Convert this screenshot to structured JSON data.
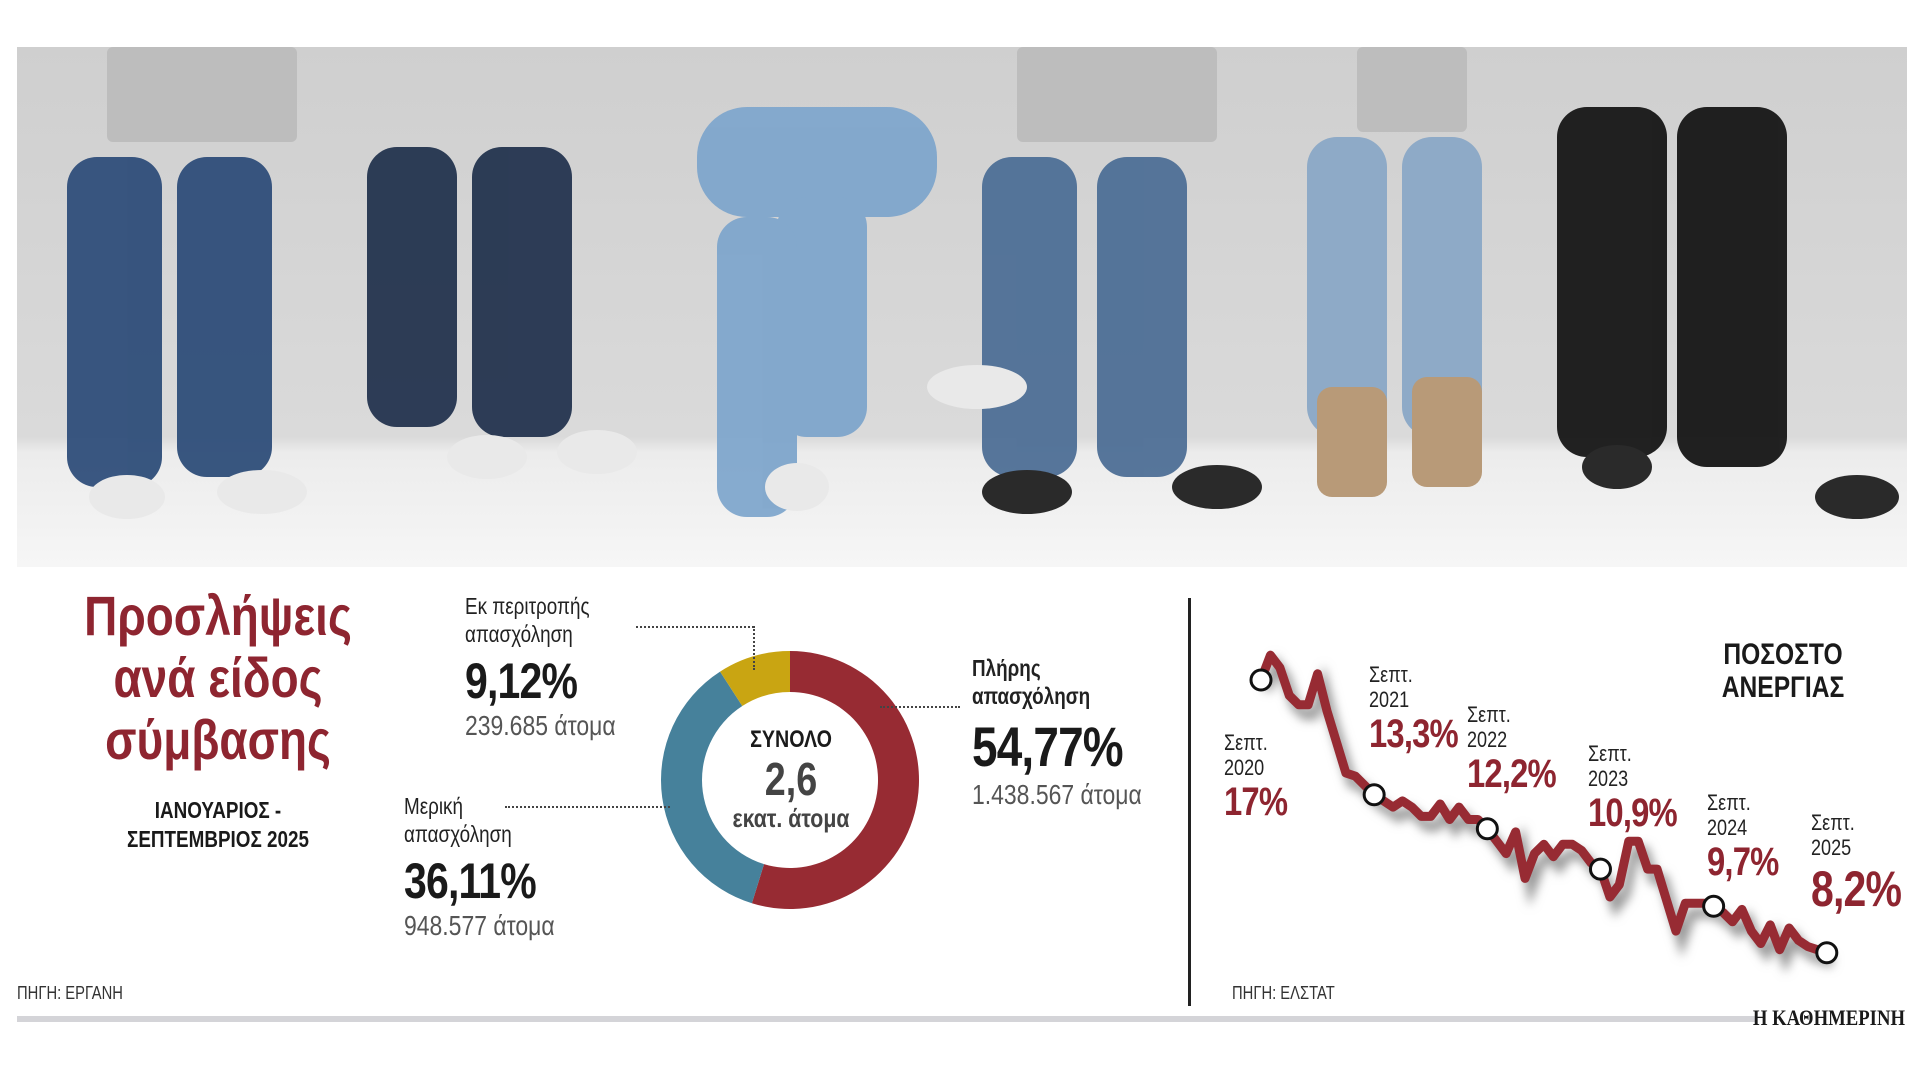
{
  "title": [
    "Προσλήψεις",
    "ανά είδος",
    "σύμβασης"
  ],
  "period": [
    "ΙΑΝΟΥΑΡΙΟΣ -",
    "ΣΕΠΤΕΜΒΡΙΟΣ 2025"
  ],
  "source_left": "ΠΗΓΗ: ΕΡΓΑΝΗ",
  "source_right": "ΠΗΓΗ: ΕΛΣΤΑΤ",
  "brand": "Η ΚΑΘΗΜΕΡΙΝΗ",
  "colors": {
    "full": "#972b33",
    "part": "#46819b",
    "rotation": "#c9a512",
    "line": "#972b33"
  },
  "chart_data": [
    {
      "type": "pie",
      "title": "Προσλήψεις ανά είδος σύμβασης",
      "center_label": "ΣΥΝΟΛΟ",
      "center_value": "2,6",
      "center_unit": "εκατ. άτομα",
      "slices": [
        {
          "label": [
            "Πλήρης",
            "απασχόληση"
          ],
          "value": 54.77,
          "pct_text": "54,77%",
          "count_text": "1.438.567 άτομα"
        },
        {
          "label": [
            "Μερική",
            "απασχόληση"
          ],
          "value": 36.11,
          "pct_text": "36,11%",
          "count_text": "948.577 άτομα"
        },
        {
          "label": [
            "Εκ περιτροπής",
            "απασχόληση"
          ],
          "value": 9.12,
          "pct_text": "9,12%",
          "count_text": "239.685 άτομα"
        }
      ]
    },
    {
      "type": "line",
      "title": [
        "ΠΟΣΟΣΤΟ",
        "ΑΝΕΡΓΙΑΣ"
      ],
      "x_start": "Σεπτ. 2020",
      "x_end": "Σεπτ. 2025",
      "ylim": [
        7.5,
        18
      ],
      "values": [
        17,
        17.8,
        17.4,
        16.5,
        16.2,
        16.2,
        17.2,
        16.0,
        15.0,
        14.0,
        13.9,
        13.6,
        13.3,
        13.1,
        12.9,
        13.1,
        12.9,
        12.6,
        12.6,
        13.0,
        12.5,
        12.9,
        12.5,
        12.5,
        12.2,
        11.8,
        11.4,
        12.1,
        10.6,
        11.4,
        11.7,
        11.3,
        11.7,
        11.7,
        11.5,
        11.1,
        10.9,
        10.0,
        10.4,
        11.8,
        11.8,
        10.9,
        10.9,
        9.9,
        8.9,
        9.8,
        9.8,
        9.8,
        9.7,
        9.5,
        9.2,
        9.6,
        8.9,
        8.5,
        9.1,
        8.3,
        9.0,
        8.6,
        8.4,
        8.3,
        8.2
      ],
      "annotations": [
        {
          "month": [
            "Σεπτ.",
            "2020"
          ],
          "value": 17,
          "text": "17%"
        },
        {
          "month": [
            "Σεπτ.",
            "2021"
          ],
          "value": 13.3,
          "text": "13,3%"
        },
        {
          "month": [
            "Σεπτ.",
            "2022"
          ],
          "value": 12.2,
          "text": "12,2%"
        },
        {
          "month": [
            "Σεπτ.",
            "2023"
          ],
          "value": 10.9,
          "text": "10,9%"
        },
        {
          "month": [
            "Σεπτ.",
            "2024"
          ],
          "value": 9.7,
          "text": "9,7%"
        },
        {
          "month": [
            "Σεπτ.",
            "2025"
          ],
          "value": 8.2,
          "text": "8,2%"
        }
      ]
    }
  ]
}
